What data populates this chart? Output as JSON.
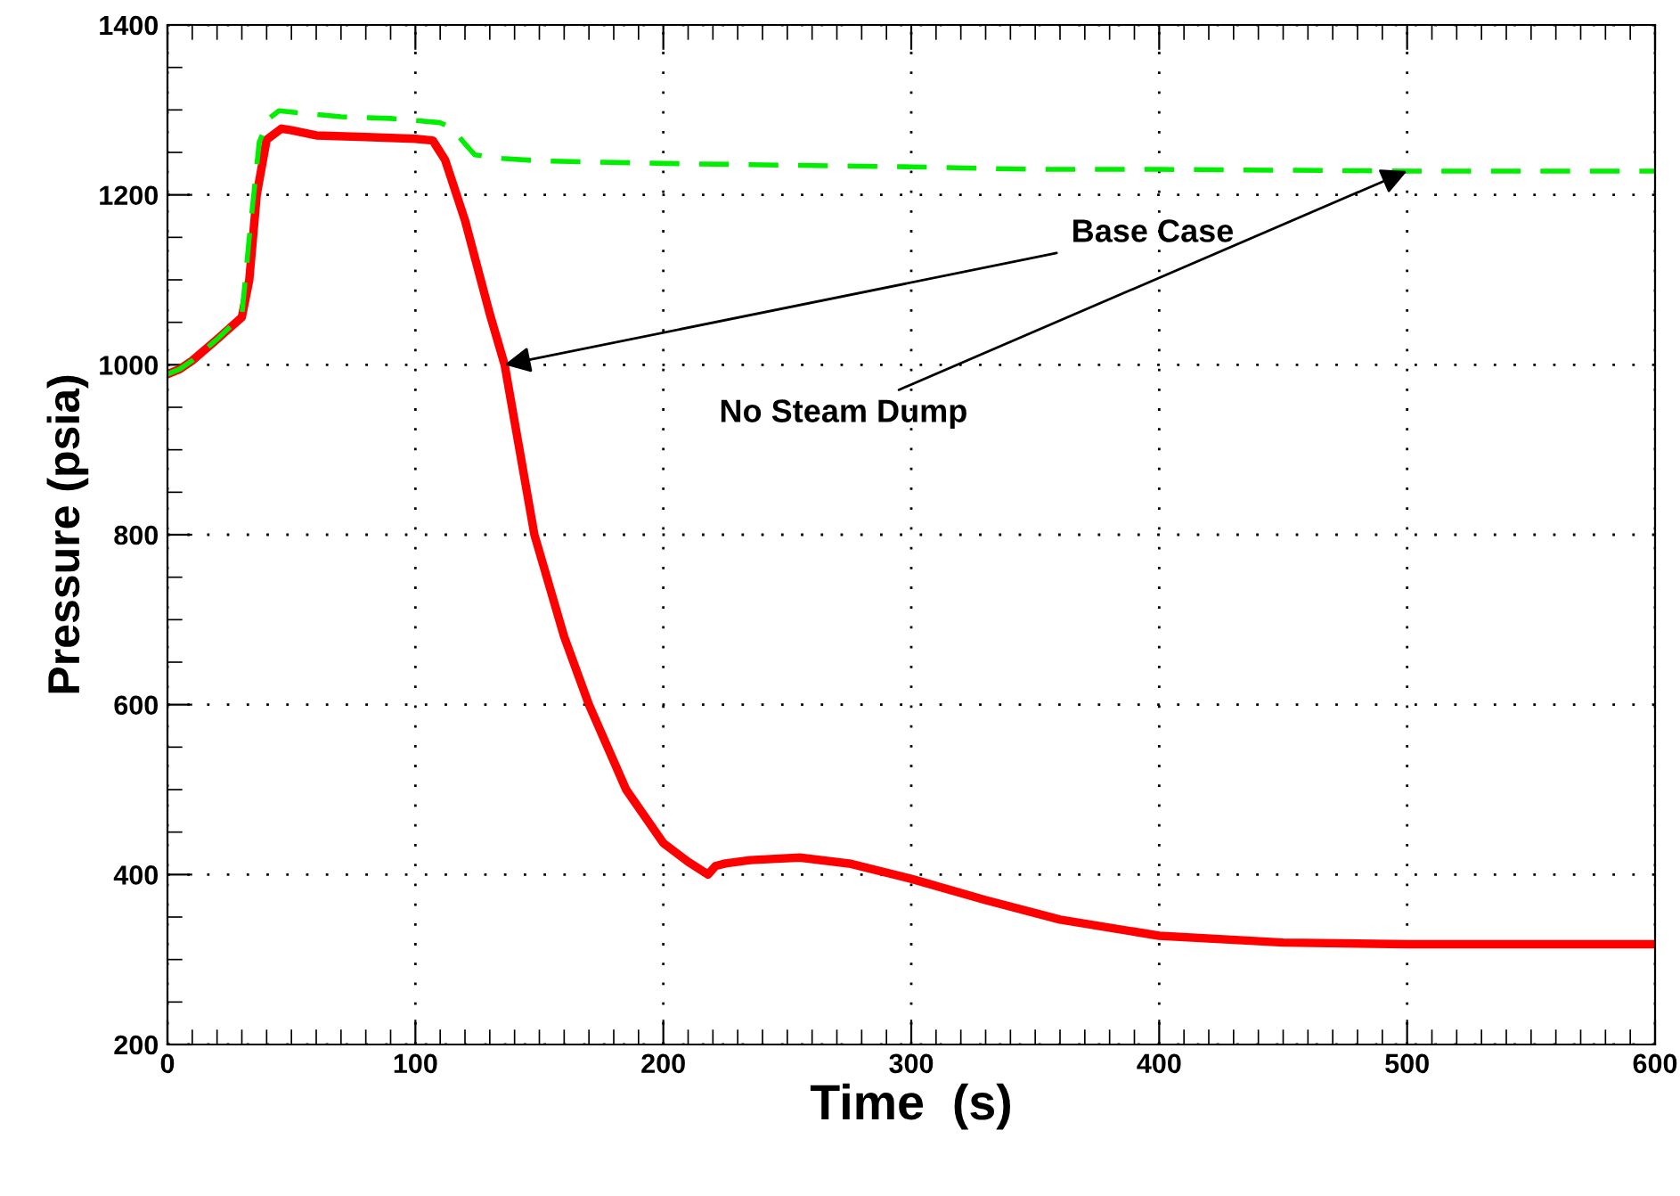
{
  "chart_data": {
    "type": "line",
    "xlabel": "Time  (s)",
    "ylabel": "Pressure (psia)",
    "xlim": [
      0,
      600
    ],
    "xticks": [
      0,
      100,
      200,
      300,
      400,
      500,
      600
    ],
    "ylim": [
      200,
      1400
    ],
    "yticks": [
      200,
      400,
      600,
      800,
      1000,
      1200,
      1400
    ],
    "grid": true,
    "series": [
      {
        "color": "#ff0000",
        "line_style": "solid",
        "x": [
          0,
          5,
          10,
          20,
          30,
          33,
          36,
          40,
          46,
          50,
          60,
          80,
          100,
          107,
          112,
          120,
          130,
          136,
          148,
          160,
          170,
          185,
          200,
          210,
          218,
          221,
          225,
          235,
          255,
          275,
          300,
          330,
          360,
          400,
          450,
          500,
          550,
          600
        ],
        "values": [
          989,
          995,
          1005,
          1030,
          1056,
          1100,
          1200,
          1265,
          1278,
          1276,
          1270,
          1268,
          1266,
          1264,
          1241,
          1170,
          1060,
          1000,
          800,
          680,
          600,
          500,
          437,
          415,
          400,
          410,
          413,
          417,
          420,
          413,
          395,
          370,
          347,
          328,
          320,
          318,
          318,
          318
        ]
      },
      {
        "color": "#00ee00",
        "line_style": "dashed",
        "x": [
          0,
          5,
          10,
          20,
          30,
          33,
          37,
          41,
          45,
          55,
          70,
          90,
          110,
          115,
          120,
          124,
          135,
          150,
          200,
          250,
          300,
          350,
          400,
          500,
          600
        ],
        "values": [
          989,
          995,
          1005,
          1030,
          1058,
          1150,
          1262,
          1290,
          1299,
          1296,
          1292,
          1290,
          1285,
          1278,
          1260,
          1247,
          1243,
          1240,
          1237,
          1235,
          1233,
          1230,
          1230,
          1228,
          1228
        ]
      }
    ],
    "annotations": [
      {
        "text": "Base Case",
        "x": 136,
        "y": 1000
      },
      {
        "text": "No Steam Dump",
        "x": 500,
        "y": 1228
      }
    ]
  }
}
